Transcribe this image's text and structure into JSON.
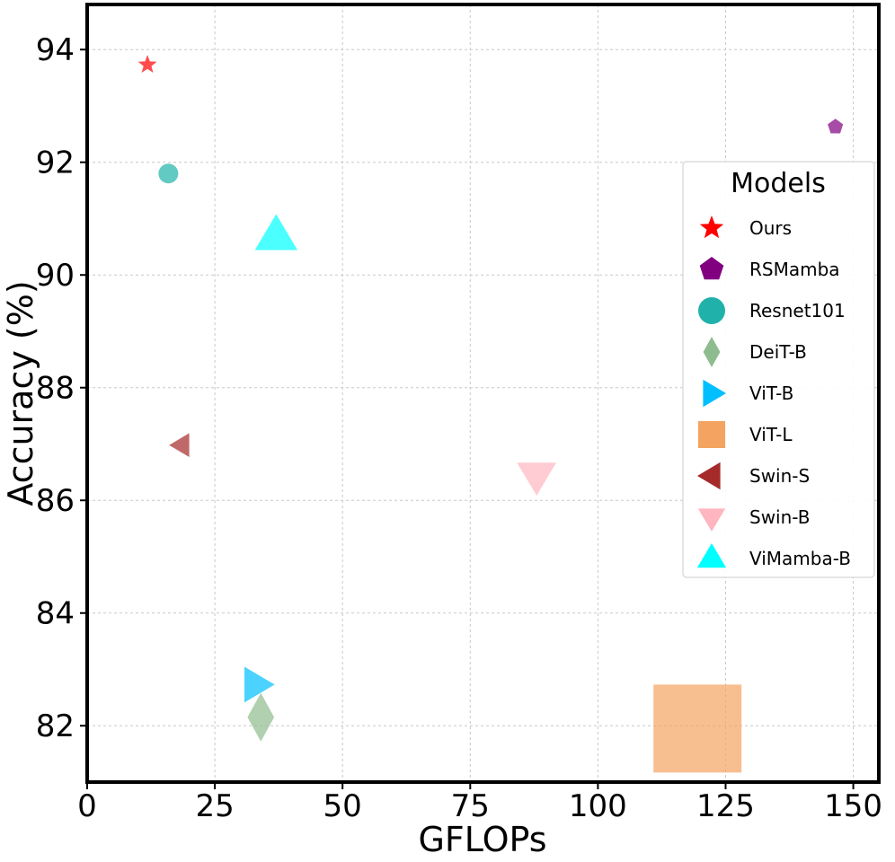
{
  "chart_data": {
    "type": "scatter",
    "xlabel": "GFLOPs",
    "ylabel": "Accuracy (%)",
    "xlim": [
      0,
      155
    ],
    "ylim": [
      81,
      94.8
    ],
    "xticks": [
      0,
      25,
      50,
      75,
      100,
      125,
      150
    ],
    "yticks": [
      82,
      84,
      86,
      88,
      90,
      92,
      94
    ],
    "grid": true,
    "legend": {
      "title": "Models",
      "placement": "right"
    },
    "series": [
      {
        "name": "Ours",
        "marker": "star",
        "color": "#ff0000",
        "x": 11.8,
        "y": 93.73
      },
      {
        "name": "RSMamba",
        "marker": "pentagon",
        "color": "#800080",
        "x": 146.5,
        "y": 92.63
      },
      {
        "name": "Resnet101",
        "marker": "circle",
        "color": "#20b2aa",
        "x": 15.9,
        "y": 91.8
      },
      {
        "name": "DeiT-B",
        "marker": "diamond",
        "color": "#8fbc8f",
        "x": 34.0,
        "y": 82.15
      },
      {
        "name": "ViT-B",
        "marker": "triangle-right",
        "color": "#00bfff",
        "x": 33.0,
        "y": 82.73
      },
      {
        "name": "ViT-L",
        "marker": "square",
        "color": "#f4a460",
        "x": 119.5,
        "y": 81.95
      },
      {
        "name": "Swin-S",
        "marker": "triangle-left",
        "color": "#a52a2a",
        "x": 18.5,
        "y": 86.98
      },
      {
        "name": "Swin-B",
        "marker": "triangle-down",
        "color": "#ffb6c1",
        "x": 88.0,
        "y": 86.45
      },
      {
        "name": "ViMamba-B",
        "marker": "triangle-up",
        "color": "#00ffff",
        "x": 37.0,
        "y": 90.68
      }
    ]
  }
}
